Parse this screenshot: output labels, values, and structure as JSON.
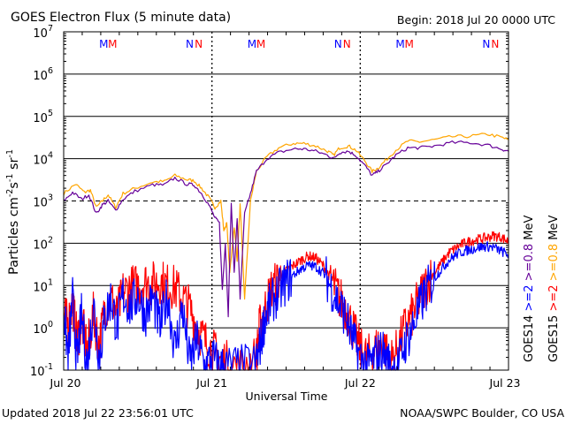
{
  "chart_data": {
    "type": "line",
    "title": "GOES Electron Flux (5 minute data)",
    "begin_label": "Begin: 2018 Jul 20 0000 UTC",
    "xlabel": "Universal Time",
    "ylabel": {
      "base": "Particles cm",
      "e1": "-2",
      "mid1": "s",
      "e2": "-1",
      "mid2": "sr",
      "e3": "-1"
    },
    "x_ticks": [
      "Jul 20",
      "Jul 21",
      "Jul 22",
      "Jul 23"
    ],
    "x_range_days": [
      0,
      3
    ],
    "y_scale": "log",
    "y_range": [
      0.1,
      10000000
    ],
    "y_ticks": [
      {
        "base": "10",
        "exp": "-1"
      },
      {
        "base": "10",
        "exp": "0"
      },
      {
        "base": "10",
        "exp": "1"
      },
      {
        "base": "10",
        "exp": "2"
      },
      {
        "base": "10",
        "exp": "3"
      },
      {
        "base": "10",
        "exp": "4"
      },
      {
        "base": "10",
        "exp": "5"
      },
      {
        "base": "10",
        "exp": "6"
      },
      {
        "base": "10",
        "exp": "7"
      }
    ],
    "marker_groups": [
      {
        "color": "#0000ff",
        "text": "M"
      },
      {
        "color": "#ff0000",
        "text": "M"
      },
      {
        "color": "#0000ff",
        "text": "N"
      },
      {
        "color": "#ff0000",
        "text": "N"
      }
    ],
    "right_legend": [
      {
        "text": "GOES14",
        "color": "#000000"
      },
      {
        "text": ">=2",
        "color": "#0000ff"
      },
      {
        "text": ">=0.8",
        "color": "#660099"
      },
      {
        "text": "MeV",
        "color": "#000000"
      },
      {
        "text": "GOES15",
        "color": "#000000"
      },
      {
        "text": ">=2",
        "color": "#ff0000"
      },
      {
        "text": ">=0.8",
        "color": "#ffa500"
      },
      {
        "text": "MeV",
        "color": "#000000"
      }
    ],
    "series": [
      {
        "key": "g15_08",
        "color": "#ffa500",
        "points": [
          [
            0.0,
            1500
          ],
          [
            0.08,
            2500
          ],
          [
            0.14,
            1600
          ],
          [
            0.18,
            1800
          ],
          [
            0.22,
            700
          ],
          [
            0.26,
            1000
          ],
          [
            0.3,
            1400
          ],
          [
            0.35,
            700
          ],
          [
            0.4,
            1500
          ],
          [
            0.48,
            2000
          ],
          [
            0.6,
            2800
          ],
          [
            0.68,
            2900
          ],
          [
            0.75,
            4000
          ],
          [
            0.83,
            3200
          ],
          [
            0.88,
            3000
          ],
          [
            0.93,
            2000
          ],
          [
            0.98,
            1200
          ],
          [
            1.02,
            700
          ],
          [
            1.06,
            1000
          ],
          [
            1.08,
            200
          ],
          [
            1.1,
            300
          ],
          [
            1.12,
            20
          ],
          [
            1.15,
            250
          ],
          [
            1.17,
            40
          ],
          [
            1.19,
            800
          ],
          [
            1.22,
            5
          ],
          [
            1.26,
            1000
          ],
          [
            1.3,
            5000
          ],
          [
            1.37,
            11000
          ],
          [
            1.45,
            18000
          ],
          [
            1.55,
            23000
          ],
          [
            1.62,
            23000
          ],
          [
            1.7,
            20000
          ],
          [
            1.78,
            15000
          ],
          [
            1.82,
            12000
          ],
          [
            1.86,
            18000
          ],
          [
            1.92,
            20000
          ],
          [
            1.97,
            16000
          ],
          [
            2.03,
            9000
          ],
          [
            2.08,
            5000
          ],
          [
            2.12,
            6000
          ],
          [
            2.17,
            9000
          ],
          [
            2.24,
            16000
          ],
          [
            2.32,
            26000
          ],
          [
            2.4,
            25000
          ],
          [
            2.5,
            28000
          ],
          [
            2.62,
            33000
          ],
          [
            2.74,
            34000
          ],
          [
            2.86,
            38000
          ],
          [
            2.95,
            32000
          ],
          [
            3.0,
            28000
          ]
        ]
      },
      {
        "key": "g14_08",
        "color": "#660099",
        "points": [
          [
            0.0,
            1000
          ],
          [
            0.06,
            1600
          ],
          [
            0.12,
            1100
          ],
          [
            0.17,
            1400
          ],
          [
            0.22,
            500
          ],
          [
            0.26,
            800
          ],
          [
            0.3,
            1000
          ],
          [
            0.35,
            600
          ],
          [
            0.4,
            1100
          ],
          [
            0.48,
            1700
          ],
          [
            0.6,
            2400
          ],
          [
            0.68,
            2400
          ],
          [
            0.75,
            3500
          ],
          [
            0.83,
            2500
          ],
          [
            0.88,
            2400
          ],
          [
            0.93,
            1500
          ],
          [
            0.98,
            800
          ],
          [
            1.02,
            400
          ],
          [
            1.05,
            300
          ],
          [
            1.07,
            8
          ],
          [
            1.09,
            100
          ],
          [
            1.11,
            2
          ],
          [
            1.13,
            900
          ],
          [
            1.15,
            20
          ],
          [
            1.17,
            400
          ],
          [
            1.19,
            5
          ],
          [
            1.22,
            500
          ],
          [
            1.26,
            1500
          ],
          [
            1.3,
            5000
          ],
          [
            1.37,
            10000
          ],
          [
            1.45,
            14000
          ],
          [
            1.55,
            17000
          ],
          [
            1.62,
            17000
          ],
          [
            1.7,
            15000
          ],
          [
            1.78,
            12000
          ],
          [
            1.82,
            10000
          ],
          [
            1.86,
            14000
          ],
          [
            1.92,
            15000
          ],
          [
            1.97,
            12000
          ],
          [
            2.03,
            7000
          ],
          [
            2.08,
            4000
          ],
          [
            2.12,
            5000
          ],
          [
            2.17,
            7000
          ],
          [
            2.24,
            12000
          ],
          [
            2.32,
            18000
          ],
          [
            2.4,
            18000
          ],
          [
            2.5,
            20000
          ],
          [
            2.62,
            24000
          ],
          [
            2.74,
            24000
          ],
          [
            2.86,
            21000
          ],
          [
            2.95,
            17000
          ],
          [
            3.0,
            15000
          ]
        ]
      },
      {
        "key": "g15_2",
        "color": "#ff0000",
        "points": [
          [
            0.0,
            2
          ],
          [
            0.03,
            1.2
          ],
          [
            0.06,
            4
          ],
          [
            0.09,
            0.5
          ],
          [
            0.12,
            1.5
          ],
          [
            0.16,
            0.3
          ],
          [
            0.2,
            2
          ],
          [
            0.24,
            0.4
          ],
          [
            0.28,
            3
          ],
          [
            0.32,
            5
          ],
          [
            0.36,
            2
          ],
          [
            0.4,
            7
          ],
          [
            0.45,
            9
          ],
          [
            0.5,
            10
          ],
          [
            0.55,
            12
          ],
          [
            0.6,
            11
          ],
          [
            0.65,
            13
          ],
          [
            0.7,
            10
          ],
          [
            0.75,
            9
          ],
          [
            0.8,
            5
          ],
          [
            0.85,
            3
          ],
          [
            0.9,
            1
          ],
          [
            0.95,
            0.5
          ],
          [
            1.0,
            0.3
          ],
          [
            1.05,
            0.2
          ],
          [
            1.1,
            0.15
          ],
          [
            1.2,
            0.12
          ],
          [
            1.3,
            0.2
          ],
          [
            1.32,
            1
          ],
          [
            1.36,
            3
          ],
          [
            1.4,
            8
          ],
          [
            1.45,
            14
          ],
          [
            1.5,
            22
          ],
          [
            1.55,
            30
          ],
          [
            1.6,
            40
          ],
          [
            1.65,
            50
          ],
          [
            1.7,
            45
          ],
          [
            1.75,
            30
          ],
          [
            1.8,
            15
          ],
          [
            1.85,
            6
          ],
          [
            1.9,
            3
          ],
          [
            1.95,
            1
          ],
          [
            2.0,
            0.3
          ],
          [
            2.05,
            0.2
          ],
          [
            2.1,
            0.3
          ],
          [
            2.15,
            0.5
          ],
          [
            2.2,
            0.15
          ],
          [
            2.25,
            0.3
          ],
          [
            2.3,
            1
          ],
          [
            2.35,
            2
          ],
          [
            2.4,
            5
          ],
          [
            2.45,
            12
          ],
          [
            2.5,
            20
          ],
          [
            2.55,
            35
          ],
          [
            2.6,
            60
          ],
          [
            2.65,
            80
          ],
          [
            2.7,
            100
          ],
          [
            2.75,
            115
          ],
          [
            2.8,
            125
          ],
          [
            2.85,
            135
          ],
          [
            2.9,
            150
          ],
          [
            2.95,
            140
          ],
          [
            3.0,
            110
          ]
        ]
      },
      {
        "key": "g14_2",
        "color": "#0000ff",
        "points": [
          [
            0.0,
            3
          ],
          [
            0.03,
            0.2
          ],
          [
            0.06,
            5
          ],
          [
            0.09,
            0.15
          ],
          [
            0.12,
            2
          ],
          [
            0.16,
            0.12
          ],
          [
            0.2,
            4
          ],
          [
            0.24,
            0.2
          ],
          [
            0.28,
            2
          ],
          [
            0.32,
            5
          ],
          [
            0.36,
            1
          ],
          [
            0.4,
            6
          ],
          [
            0.45,
            3
          ],
          [
            0.5,
            6
          ],
          [
            0.55,
            2
          ],
          [
            0.6,
            5
          ],
          [
            0.65,
            1
          ],
          [
            0.7,
            6
          ],
          [
            0.75,
            0.3
          ],
          [
            0.8,
            3
          ],
          [
            0.85,
            0.15
          ],
          [
            0.9,
            0.5
          ],
          [
            0.95,
            0.12
          ],
          [
            1.0,
            0.2
          ],
          [
            1.05,
            0.12
          ],
          [
            1.1,
            0.12
          ],
          [
            1.2,
            0.12
          ],
          [
            1.3,
            0.15
          ],
          [
            1.33,
            0.5
          ],
          [
            1.36,
            2
          ],
          [
            1.4,
            4
          ],
          [
            1.45,
            7
          ],
          [
            1.5,
            12
          ],
          [
            1.55,
            18
          ],
          [
            1.6,
            25
          ],
          [
            1.65,
            30
          ],
          [
            1.7,
            28
          ],
          [
            1.75,
            20
          ],
          [
            1.8,
            10
          ],
          [
            1.85,
            4
          ],
          [
            1.9,
            2
          ],
          [
            1.95,
            0.5
          ],
          [
            2.0,
            0.2
          ],
          [
            2.05,
            0.12
          ],
          [
            2.1,
            0.2
          ],
          [
            2.15,
            0.3
          ],
          [
            2.2,
            0.12
          ],
          [
            2.25,
            0.12
          ],
          [
            2.3,
            0.4
          ],
          [
            2.35,
            1
          ],
          [
            2.4,
            3
          ],
          [
            2.45,
            8
          ],
          [
            2.5,
            15
          ],
          [
            2.55,
            25
          ],
          [
            2.6,
            40
          ],
          [
            2.65,
            55
          ],
          [
            2.7,
            65
          ],
          [
            2.75,
            72
          ],
          [
            2.8,
            80
          ],
          [
            2.85,
            85
          ],
          [
            2.9,
            80
          ],
          [
            2.95,
            65
          ],
          [
            3.0,
            55
          ]
        ]
      }
    ]
  },
  "footer": {
    "updated": "Updated 2018 Jul 22 23:56:01 UTC",
    "credit": "NOAA/SWPC Boulder, CO USA"
  }
}
